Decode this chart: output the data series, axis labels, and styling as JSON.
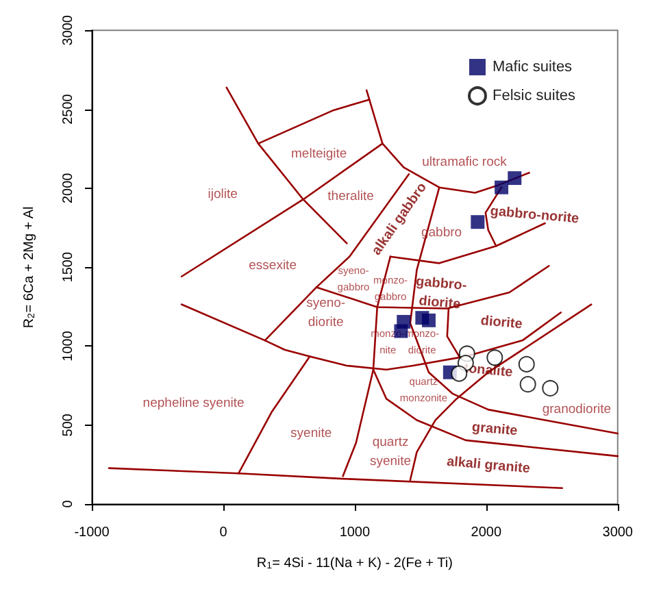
{
  "chart_data": {
    "type": "scatter",
    "xlabel": "R$_{1}$= 4Si - 11(Na + K) - 2(Fe + Ti)",
    "ylabel": "R$_{2}$= 6Ca + 2Mg + Al",
    "xlim": [
      -1000,
      3000
    ],
    "xticks": [
      -1000,
      0,
      1000,
      2000,
      3000
    ],
    "ylim": [
      0,
      3000
    ],
    "yticks": [
      0,
      500,
      1000,
      1500,
      2000,
      2500,
      3000
    ],
    "grid": false,
    "legend": "top right",
    "series": [
      {
        "type": "line",
        "color": "#990000",
        "marker": "none",
        "x": [
          25,
          266,
          608,
          940
        ],
        "values": [
          2637,
          2283,
          1929,
          1651
        ]
      },
      {
        "type": "line",
        "color": "#990000",
        "marker": "none",
        "x": [
          266,
          839,
          1111
        ],
        "values": [
          2283,
          2494,
          2561
        ]
      },
      {
        "type": "line",
        "color": "#990000",
        "marker": "none",
        "x": [
          1090,
          1111,
          1211,
          1372,
          1643,
          1915,
          2075,
          2327
        ],
        "values": [
          2620,
          2561,
          2283,
          2132,
          2005,
          1971,
          2014,
          2098
        ]
      },
      {
        "type": "line",
        "color": "#990000",
        "marker": "none",
        "x": [
          -317,
          608,
          1211
        ],
        "values": [
          1441,
          1929,
          2283
        ]
      },
      {
        "type": "line",
        "color": "#990000",
        "marker": "none",
        "x": [
          1412,
          960,
          709,
          317
        ],
        "values": [
          2089,
          1567,
          1373,
          1036
        ]
      },
      {
        "type": "line",
        "color": "#990000",
        "marker": "none",
        "x": [
          -317,
          317,
          467,
          658,
          940,
          1241,
          1442,
          1844,
          2276,
          2568
        ],
        "values": [
          1264,
          1036,
          977,
          935,
          876,
          851,
          876,
          935,
          1036,
          1213
        ]
      },
      {
        "type": "line",
        "color": "#990000",
        "marker": "none",
        "x": [
          1643,
          1472,
          1422,
          1563,
          1744,
          2015,
          2447,
          3000
        ],
        "values": [
          2005,
          1483,
          1146,
          834,
          699,
          598,
          531,
          447
        ]
      },
      {
        "type": "line",
        "color": "#990000",
        "marker": "none",
        "x": [
          709,
          1171,
          1703,
          2176,
          2477
        ],
        "values": [
          1373,
          1247,
          1238,
          1340,
          1508
        ]
      },
      {
        "type": "line",
        "color": "#990000",
        "marker": "none",
        "x": [
          1271,
          1171,
          1141,
          1010,
          910
        ],
        "values": [
          1567,
          1247,
          851,
          388,
          177
        ]
      },
      {
        "type": "line",
        "color": "#990000",
        "marker": "none",
        "x": [
          2116,
          1995,
          2015,
          2075
        ],
        "values": [
          2005,
          1845,
          1736,
          1634
        ]
      },
      {
        "type": "line",
        "color": "#990000",
        "marker": "none",
        "x": [
          1271,
          1643,
          2075,
          2447
        ],
        "values": [
          1567,
          1525,
          1634,
          1778
        ]
      },
      {
        "type": "line",
        "color": "#990000",
        "marker": "none",
        "x": [
          1714,
          1703,
          1794
        ],
        "values": [
          1238,
          1062,
          935
        ]
      },
      {
        "type": "line",
        "color": "#990000",
        "marker": "none",
        "x": [
          1141,
          1241,
          1472,
          1844,
          3000
        ],
        "values": [
          851,
          666,
          531,
          404,
          303
        ]
      },
      {
        "type": "line",
        "color": "#990000",
        "marker": "none",
        "x": [
          2799,
          2015,
          1774,
          1613,
          1472,
          1422
        ],
        "values": [
          1264,
          834,
          666,
          531,
          329,
          152
        ]
      },
      {
        "type": "line",
        "color": "#990000",
        "marker": "none",
        "x": [
          658,
          367,
          116
        ],
        "values": [
          935,
          581,
          194
        ]
      },
      {
        "type": "line",
        "color": "#990000",
        "marker": "none",
        "x": [
          -869,
          116,
          910,
          2578
        ],
        "values": [
          227,
          194,
          160,
          101
        ]
      },
      {
        "name": "Mafic suites",
        "color": "#000066",
        "marker": "square",
        "x": [
          2216,
          2116,
          1935,
          1372,
          1352,
          1513,
          1563,
          1724
        ],
        "values": [
          2064,
          2005,
          1786,
          1154,
          1095,
          1179,
          1163,
          834
        ]
      },
      {
        "name": "Felsic suites",
        "color": "#000000",
        "marker": "circle",
        "x": [
          1854,
          1844,
          1794,
          2065,
          2307,
          2317,
          2487
        ],
        "values": [
          952,
          893,
          826,
          927,
          885,
          758,
          733
        ]
      }
    ],
    "annotations": [
      "melteigite",
      "ijolite",
      "theralite",
      "ultramafic rock",
      "alkali gabbro",
      "gabbro",
      "gabbro-norite",
      "essexite",
      "syeno-\ngabbro",
      "monzo-\ngabbro",
      "syeno-\ndiorite",
      "gabbro-\ndiorite",
      "monzo-\nnite",
      "monzo-\ndiorite",
      "diorite",
      "nepheline syenite",
      "tonalite",
      "granodiorite",
      "quartz\nmonzonite",
      "syenite",
      "quartz\nsyenite",
      "granite",
      "alkali granite"
    ]
  }
}
